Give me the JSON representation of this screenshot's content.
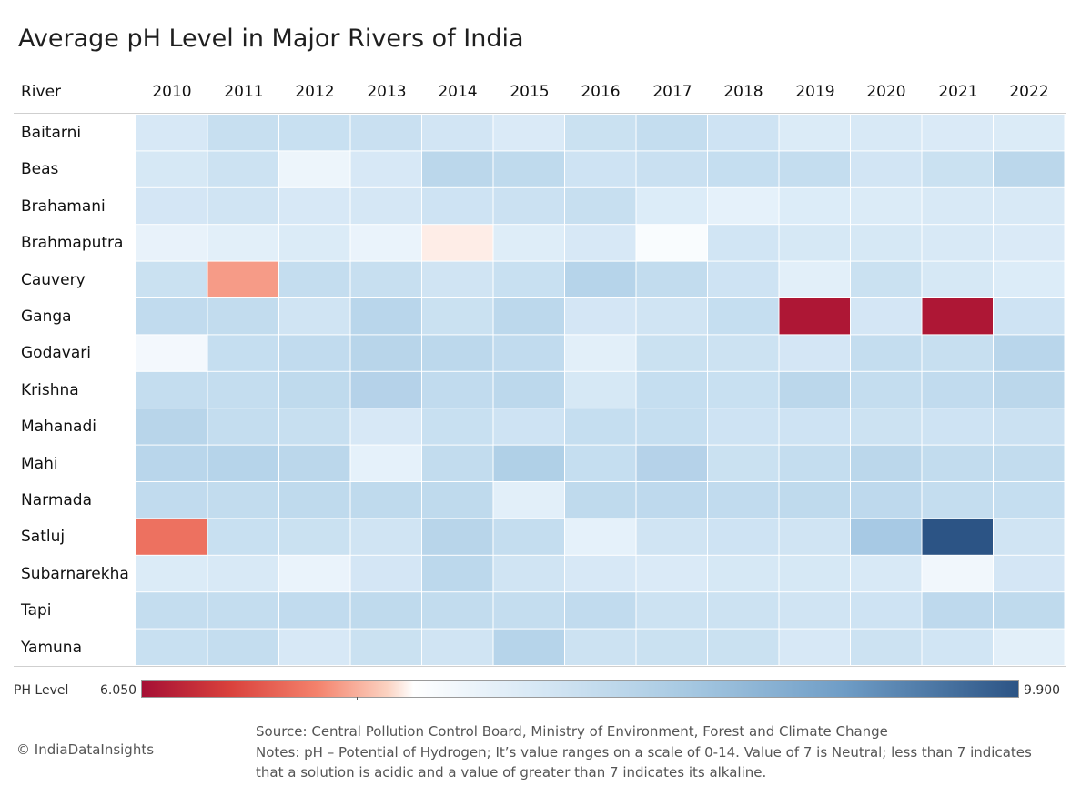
{
  "chart_data": {
    "type": "heatmap",
    "title": "Average pH Level in Major Rivers of India",
    "row_header": "River",
    "columns": [
      "2010",
      "2011",
      "2012",
      "2013",
      "2014",
      "2015",
      "2016",
      "2017",
      "2018",
      "2019",
      "2020",
      "2021",
      "2022"
    ],
    "rows": [
      "Baitarni",
      "Beas",
      "Brahamani",
      "Brahmaputra",
      "Cauvery",
      "Ganga",
      "Godavari",
      "Krishna",
      "Mahanadi",
      "Mahi",
      "Narmada",
      "Satluj",
      "Subarnarekha",
      "Tapi",
      "Yamuna"
    ],
    "values": [
      [
        7.4,
        7.68,
        7.65,
        7.63,
        7.48,
        7.35,
        7.62,
        7.72,
        7.55,
        7.32,
        7.38,
        7.34,
        7.33
      ],
      [
        7.42,
        7.58,
        7.15,
        7.4,
        7.88,
        7.8,
        7.55,
        7.63,
        7.7,
        7.72,
        7.48,
        7.62,
        7.88
      ],
      [
        7.45,
        7.52,
        7.4,
        7.43,
        7.55,
        7.6,
        7.68,
        7.3,
        7.22,
        7.3,
        7.33,
        7.38,
        7.38
      ],
      [
        7.2,
        7.25,
        7.32,
        7.18,
        6.95,
        7.28,
        7.4,
        7.05,
        7.5,
        7.42,
        7.42,
        7.38,
        7.35
      ],
      [
        7.62,
        6.7,
        7.72,
        7.68,
        7.52,
        7.65,
        7.95,
        7.75,
        7.55,
        7.25,
        7.62,
        7.42,
        7.3
      ],
      [
        7.78,
        7.75,
        7.52,
        7.9,
        7.62,
        7.85,
        7.45,
        7.52,
        7.7,
        6.1,
        7.45,
        6.1,
        7.55
      ],
      [
        7.1,
        7.7,
        7.78,
        7.92,
        7.85,
        7.78,
        7.25,
        7.62,
        7.58,
        7.45,
        7.72,
        7.68,
        7.9
      ],
      [
        7.72,
        7.72,
        7.8,
        7.98,
        7.78,
        7.85,
        7.42,
        7.7,
        7.65,
        7.88,
        7.72,
        7.78,
        7.88
      ],
      [
        7.92,
        7.72,
        7.68,
        7.4,
        7.65,
        7.55,
        7.7,
        7.7,
        7.55,
        7.55,
        7.58,
        7.55,
        7.6
      ],
      [
        7.9,
        7.95,
        7.88,
        7.22,
        7.75,
        8.05,
        7.7,
        7.98,
        7.62,
        7.72,
        7.88,
        7.75,
        7.75
      ],
      [
        7.78,
        7.75,
        7.8,
        7.8,
        7.8,
        7.25,
        7.8,
        7.82,
        7.78,
        7.8,
        7.82,
        7.72,
        7.7
      ],
      [
        6.55,
        7.65,
        7.62,
        7.52,
        7.92,
        7.72,
        7.22,
        7.52,
        7.55,
        7.52,
        8.2,
        9.9,
        7.52
      ],
      [
        7.32,
        7.38,
        7.18,
        7.45,
        7.85,
        7.52,
        7.4,
        7.35,
        7.42,
        7.42,
        7.38,
        7.12,
        7.45
      ],
      [
        7.72,
        7.72,
        7.78,
        7.8,
        7.75,
        7.72,
        7.78,
        7.58,
        7.58,
        7.52,
        7.55,
        7.82,
        7.8
      ],
      [
        7.65,
        7.72,
        7.4,
        7.62,
        7.52,
        7.95,
        7.58,
        7.62,
        7.62,
        7.4,
        7.58,
        7.5,
        7.25
      ]
    ],
    "color_scale": {
      "label": "PH Level",
      "min": 6.05,
      "max": 9.9,
      "min_label": "6.050",
      "max_label": "9.900",
      "colors": [
        "#a50f34",
        "#d9413c",
        "#f4826c",
        "#fbd2c1",
        "#ffffff",
        "#d7e8f5",
        "#a7c9e2",
        "#6f9dc6",
        "#2c5485"
      ]
    }
  },
  "footer": {
    "copyright": "© IndiaDataInsights",
    "source": "Source: Central Pollution Control Board, Ministry of Environment, Forest and Climate Change",
    "notes_line1": "Notes: pH – Potential of Hydrogen;  It’s value ranges on a scale of 0-14. Value of 7 is Neutral; less than 7 indicates",
    "notes_line2": "that a solution is acidic and a value of greater than 7 indicates its alkaline."
  }
}
